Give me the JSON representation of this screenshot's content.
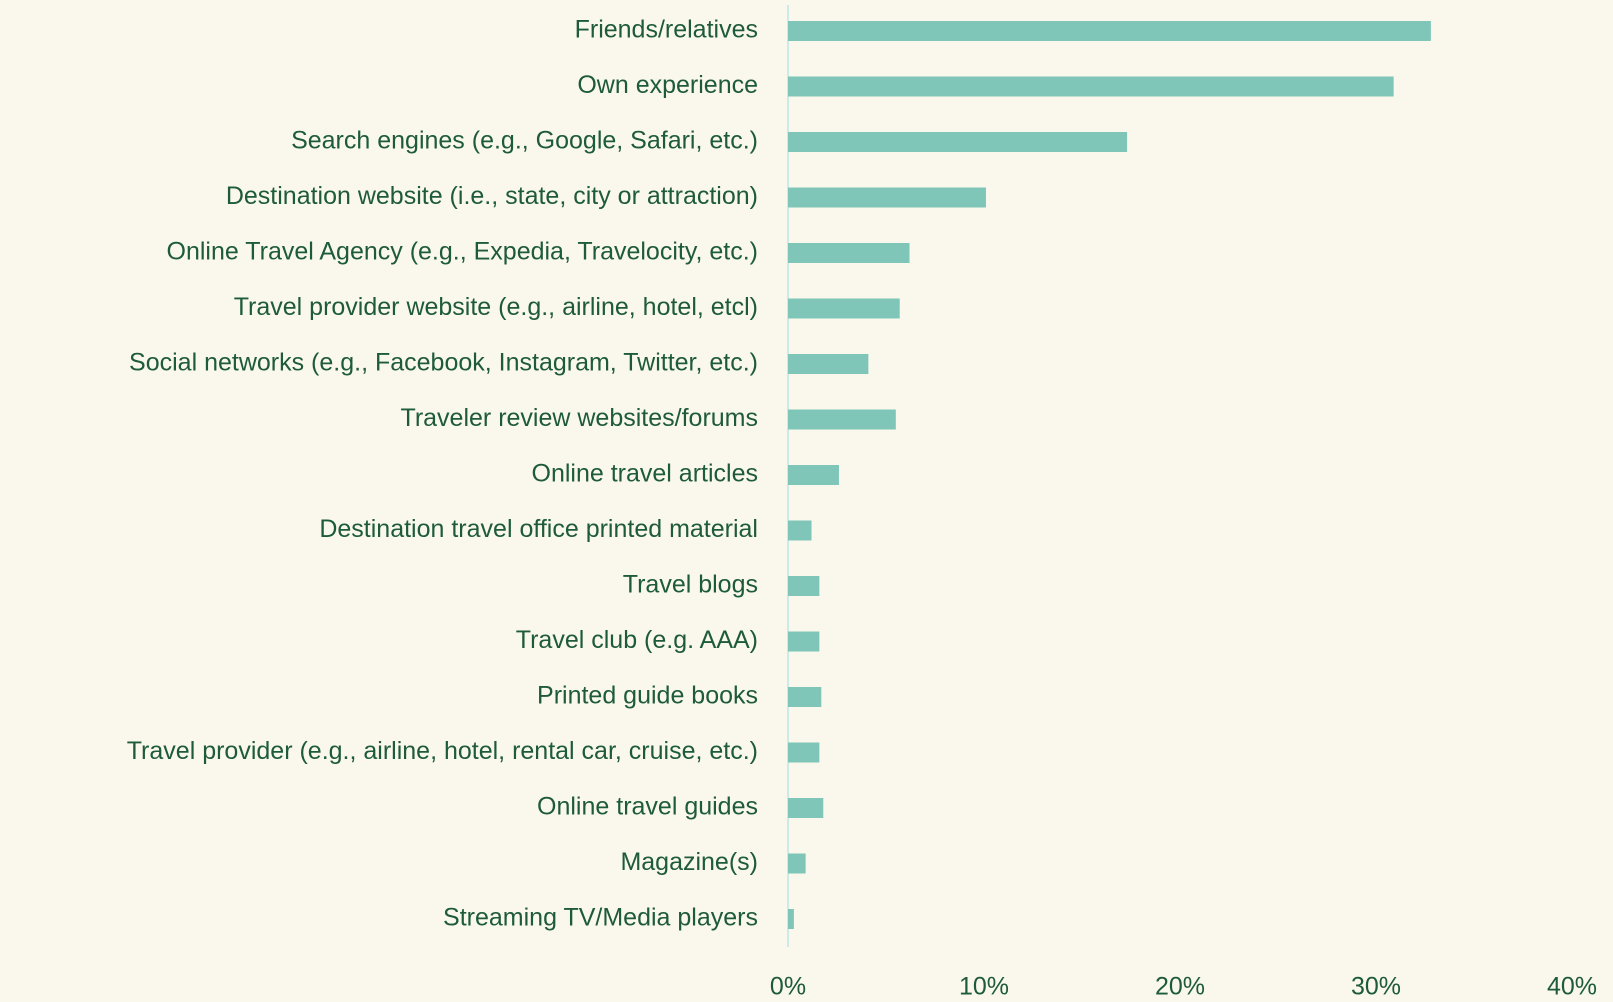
{
  "chart_data": {
    "type": "bar",
    "orientation": "horizontal",
    "categories": [
      "Friends/relatives",
      "Own experience",
      "Search engines (e.g., Google, Safari, etc.)",
      "Destination website (i.e., state, city or attraction)",
      "Online Travel Agency (e.g., Expedia, Travelocity, etc.)",
      "Travel provider website (e.g., airline, hotel, etcl)",
      "Social networks (e.g., Facebook, Instagram, Twitter, etc.)",
      "Traveler review websites/forums",
      "Online travel articles",
      "Destination travel office printed material",
      "Travel blogs",
      "Travel club (e.g. AAA)",
      "Printed guide books",
      "Travel provider (e.g., airline, hotel, rental car, cruise, etc.)",
      "Online travel guides",
      "Magazine(s)",
      "Streaming TV/Media players"
    ],
    "values": [
      32.8,
      30.9,
      17.3,
      10.1,
      6.2,
      5.7,
      4.1,
      5.5,
      2.6,
      1.2,
      1.6,
      1.6,
      1.7,
      1.6,
      1.8,
      0.9,
      0.3
    ],
    "color": "#7fc6b8",
    "xlim": [
      0,
      40
    ],
    "xticks": [
      {
        "value": 0,
        "label": "0%"
      },
      {
        "value": 10,
        "label": "10%"
      },
      {
        "value": 20,
        "label": "20%"
      },
      {
        "value": 30,
        "label": "30%"
      },
      {
        "value": 40,
        "label": "40%"
      }
    ]
  }
}
